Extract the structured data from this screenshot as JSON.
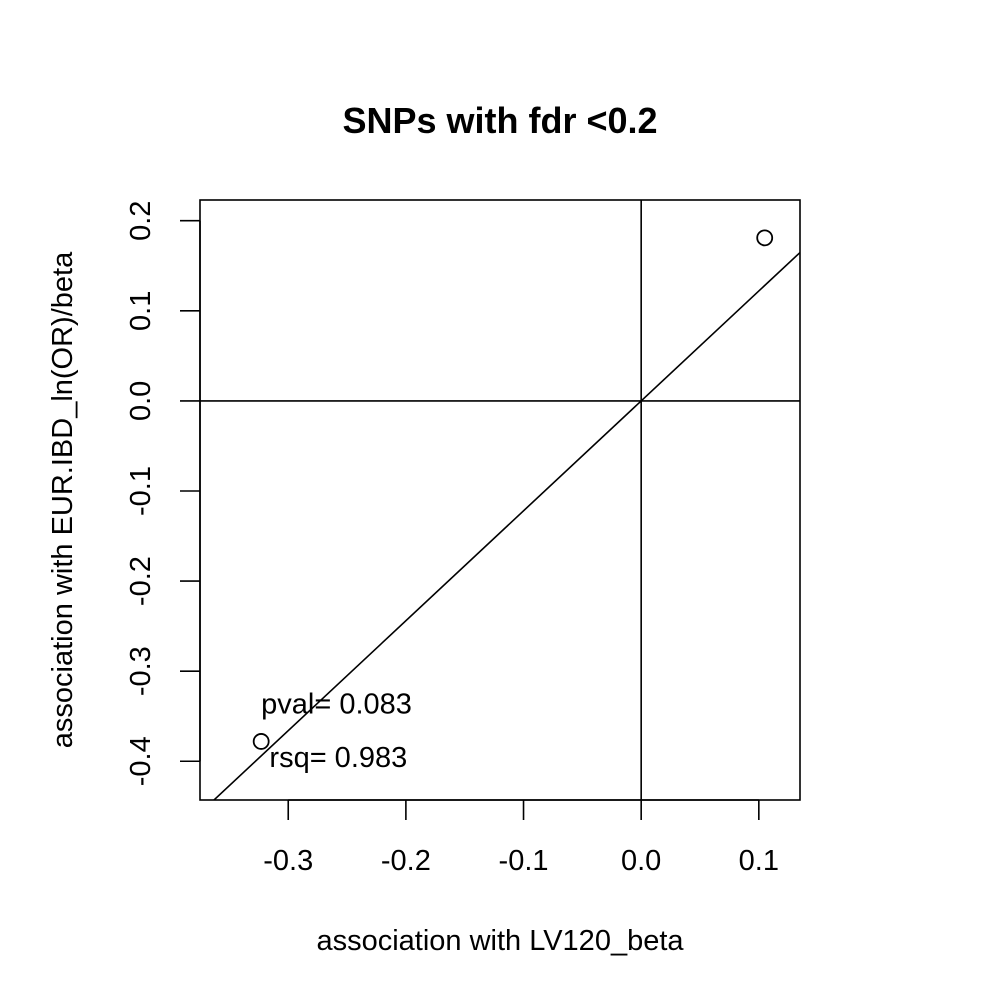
{
  "chart_data": {
    "type": "scatter",
    "title": "SNPs with fdr <0.2",
    "xlabel": "association with LV120_beta",
    "ylabel": "association with EUR.IBD_ln(OR)/beta",
    "xlim": [
      -0.375,
      0.135
    ],
    "ylim": [
      -0.443,
      0.223
    ],
    "x_ticks": [
      -0.3,
      -0.2,
      -0.1,
      0.0,
      0.1
    ],
    "x_tick_labels": [
      "-0.3",
      "-0.2",
      "-0.1",
      "0.0",
      "0.1"
    ],
    "y_ticks": [
      -0.4,
      -0.3,
      -0.2,
      -0.1,
      0.0,
      0.1,
      0.2
    ],
    "y_tick_labels": [
      "-0.4",
      "-0.3",
      "-0.2",
      "-0.1",
      "0.0",
      "0.1",
      "0.2"
    ],
    "points": [
      {
        "x": -0.323,
        "y": -0.378
      },
      {
        "x": 0.105,
        "y": 0.181
      }
    ],
    "fit_line": {
      "intercept": 0.0,
      "slope": 1.22
    },
    "reference_lines": {
      "h": 0.0,
      "v": 0.0
    },
    "annotations": [
      {
        "text": "pval= 0.083",
        "x": -0.323,
        "y": -0.336
      },
      {
        "text": "rsq= 0.983",
        "x": -0.316,
        "y": -0.395
      }
    ],
    "grid": false,
    "legend": "none"
  }
}
